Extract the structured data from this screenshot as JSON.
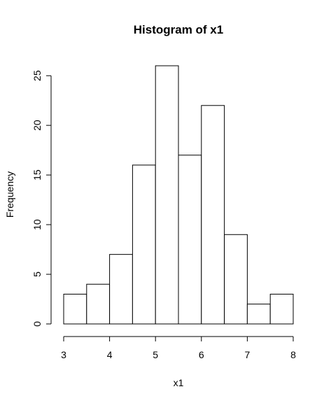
{
  "chart_data": {
    "type": "bar",
    "title": "Histogram of x1",
    "xlabel": "x1",
    "ylabel": "Frequency",
    "bin_edges": [
      3,
      3.5,
      4,
      4.5,
      5,
      5.5,
      6,
      6.5,
      7,
      7.5,
      8
    ],
    "values": [
      3,
      4,
      7,
      16,
      26,
      17,
      22,
      9,
      2,
      3
    ],
    "xlim": [
      3,
      8
    ],
    "ylim": [
      0,
      26
    ],
    "xticks": [
      3,
      4,
      5,
      6,
      7,
      8
    ],
    "yticks": [
      0,
      5,
      10,
      15,
      20,
      25
    ],
    "grid": false
  }
}
